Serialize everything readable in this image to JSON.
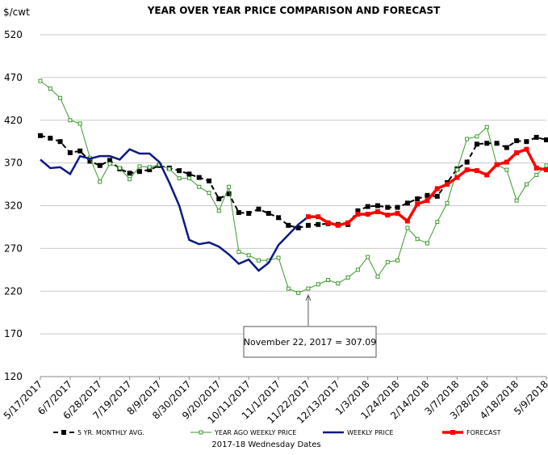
{
  "chart_data": {
    "type": "line",
    "title": "YEAR OVER YEAR PRICE COMPARISON AND FORECAST",
    "y_label": "$/cwt",
    "x_label": "2017-18 Wednesday Dates",
    "annotation": "November 22, 2017 = 307.09",
    "categories": [
      "5/17/2017",
      null,
      null,
      "6/7/2017",
      null,
      null,
      "6/28/2017",
      null,
      null,
      "7/19/2017",
      null,
      null,
      "8/9/2017",
      null,
      null,
      "8/30/2017",
      null,
      null,
      "9/20/2017",
      null,
      null,
      "10/11/2017",
      null,
      null,
      "11/1/2017",
      null,
      null,
      "11/22/2017",
      null,
      null,
      "12/13/2017",
      null,
      null,
      "1/3/2018",
      null,
      null,
      "1/24/2018",
      null,
      null,
      "2/14/2018",
      null,
      null,
      "3/7/2018",
      null,
      null,
      "3/28/2018",
      null,
      null,
      "4/18/2018",
      null,
      null,
      "5/9/2018"
    ],
    "ylim": [
      120,
      520
    ],
    "yticks": [
      120,
      170,
      220,
      270,
      320,
      370,
      420,
      470,
      520
    ],
    "grid": true,
    "series": [
      {
        "name": "5 YR. MONTHLY AVG.",
        "color": "#000000",
        "values": [
          402,
          399,
          395,
          382,
          384,
          372,
          367,
          373,
          363,
          358,
          360,
          362,
          367,
          364,
          361,
          357,
          353,
          349,
          328,
          334,
          312,
          311,
          316,
          311,
          306,
          297,
          294,
          297,
          298,
          299,
          298,
          298,
          314,
          319,
          320,
          318,
          318,
          323,
          328,
          332,
          331,
          347,
          363,
          371,
          392,
          393,
          393,
          388,
          396,
          395,
          400,
          397
        ]
      },
      {
        "name": "YEAR AGO WEEKLY PRICE",
        "color": "#3a9a2a",
        "values": [
          466,
          457,
          446,
          420,
          416,
          376,
          348,
          369,
          364,
          351,
          366,
          365,
          368,
          363,
          352,
          352,
          342,
          335,
          314,
          342,
          266,
          262,
          256,
          256,
          259,
          223,
          218,
          223,
          228,
          233,
          229,
          236,
          245,
          260,
          237,
          254,
          256,
          294,
          281,
          276,
          301,
          323,
          362,
          398,
          401,
          412,
          368,
          362,
          326,
          345,
          356,
          367
        ]
      },
      {
        "name": "WEEKLY PRICE",
        "color": "#0a1a80",
        "values": [
          374,
          364,
          365,
          357,
          378,
          375,
          378,
          378,
          374,
          386,
          381,
          381,
          371,
          347,
          320,
          280,
          275,
          277,
          272,
          263,
          252,
          257,
          244,
          253,
          274,
          286,
          298,
          307.09,
          null,
          null,
          null,
          null,
          null,
          null,
          null,
          null,
          null,
          null,
          null,
          null,
          null,
          null,
          null,
          null,
          null,
          null,
          null,
          null,
          null,
          null,
          null,
          null
        ]
      },
      {
        "name": "FORECAST",
        "color": "#ff0000",
        "values": [
          null,
          null,
          null,
          null,
          null,
          null,
          null,
          null,
          null,
          null,
          null,
          null,
          null,
          null,
          null,
          null,
          null,
          null,
          null,
          null,
          null,
          null,
          null,
          null,
          null,
          null,
          null,
          307.09,
          307,
          300,
          297,
          300,
          310,
          310,
          313,
          309,
          311,
          302,
          322,
          326,
          340,
          345,
          353,
          362,
          361,
          356,
          368,
          371,
          382,
          386,
          364,
          362
        ]
      }
    ]
  }
}
